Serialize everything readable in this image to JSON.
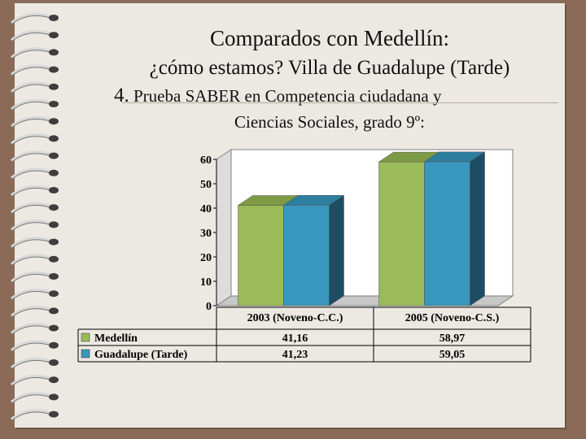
{
  "slide": {
    "title_line1": "Comparados con Medellín:",
    "title_line2": "¿cómo estamos? Villa de Guadalupe (Tarde)",
    "title_line3_number": "4.",
    "title_line3_text": "Prueba SABER en Competencia ciudadana y",
    "title_line4": "Ciencias Sociales, grado 9º:"
  },
  "chart_data": {
    "type": "bar",
    "categories": [
      "2003 (Noveno-C.C.)",
      "2005 (Noveno-C.S.)"
    ],
    "series": [
      {
        "name": "Medellín",
        "values": [
          41.16,
          58.97
        ],
        "labels": [
          "41,16",
          "58,97"
        ],
        "color": "#9bbb59"
      },
      {
        "name": "Guadalupe (Tarde)",
        "values": [
          41.23,
          59.05
        ],
        "labels": [
          "41,23",
          "59,05"
        ],
        "color": "#3a97bd"
      }
    ],
    "yticks": [
      "0",
      "10",
      "20",
      "30",
      "40",
      "50",
      "60"
    ],
    "ylim": [
      0,
      60
    ],
    "grid": false,
    "legend": "data-table-left",
    "colors": {
      "top_medellin": "#7d9a45",
      "side_medellin": "#5e7434",
      "top_guadalupe": "#2c7f9f",
      "side_guadalupe": "#1d4d63",
      "wall": "#ffffff",
      "floor": "#c8c8c8"
    }
  }
}
